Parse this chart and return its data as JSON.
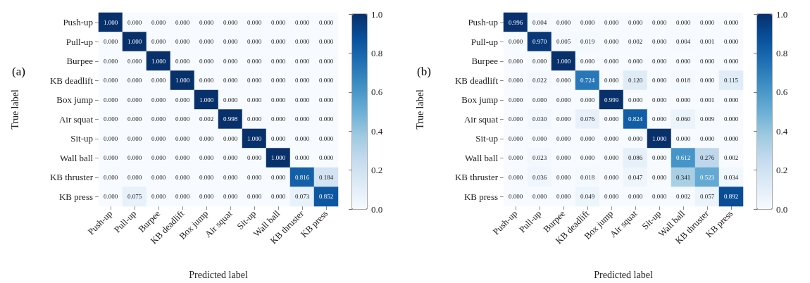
{
  "chart_data": [
    {
      "type": "heatmap",
      "title": "(a)",
      "xlabel": "Predicted label",
      "ylabel": "True label",
      "clim": [
        0,
        1
      ],
      "cticks": [
        {
          "value": 0,
          "label": "0.0"
        },
        {
          "value": 0.2,
          "label": "0.2"
        },
        {
          "value": 0.4,
          "label": "0.4"
        },
        {
          "value": 0.6,
          "label": "0.6"
        },
        {
          "value": 0.8,
          "label": "0.8"
        },
        {
          "value": 1,
          "label": "1.0"
        }
      ],
      "categories": [
        "Push-up",
        "Pull-up",
        "Burpee",
        "KB deadlift",
        "Box jump",
        "Air squat",
        "Sit-up",
        "Wall ball",
        "KB thruster",
        "KB press"
      ],
      "y_categories": [
        "Push-up",
        "Pull-up",
        "Burpee",
        "KB deadlift",
        "Box jump",
        "Air squat",
        "Sit-up",
        "Wall ball",
        "KB thruster",
        "KB press"
      ],
      "cells": [
        [
          1,
          0,
          0,
          0,
          0,
          0,
          0,
          0,
          0,
          0
        ],
        [
          0,
          1,
          0,
          0,
          0,
          0,
          0,
          0,
          0,
          0
        ],
        [
          0,
          0,
          1,
          0,
          0,
          0,
          0,
          0,
          0,
          0
        ],
        [
          0,
          0,
          0,
          1,
          0,
          0,
          0,
          0,
          0,
          0
        ],
        [
          0,
          0,
          0,
          0,
          1,
          0,
          0,
          0,
          0,
          0
        ],
        [
          0,
          0,
          0,
          0,
          0.002,
          0.998,
          0,
          0,
          0,
          0
        ],
        [
          0,
          0,
          0,
          0,
          0,
          0,
          1,
          0,
          0,
          0
        ],
        [
          0,
          0,
          0,
          0,
          0,
          0,
          0,
          1,
          0,
          0
        ],
        [
          0,
          0,
          0,
          0,
          0,
          0,
          0,
          0,
          0.816,
          0.184
        ],
        [
          0,
          0.075,
          0,
          0,
          0,
          0,
          0,
          0,
          0.073,
          0.852
        ]
      ],
      "cell_labels": [
        [
          "1.000",
          "0.000",
          "0.000",
          "0.000",
          "0.000",
          "0.000",
          "0.000",
          "0.000",
          "0.000",
          "0.000"
        ],
        [
          "0.000",
          "1.000",
          "0.000",
          "0.000",
          "0.000",
          "0.000",
          "0.000",
          "0.000",
          "0.000",
          "0.000"
        ],
        [
          "0.000",
          "0.000",
          "1.000",
          "0.000",
          "0.000",
          "0.000",
          "0.000",
          "0.000",
          "0.000",
          "0.000"
        ],
        [
          "0.000",
          "0.000",
          "0.000",
          "1.000",
          "0.000",
          "0.000",
          "0.000",
          "0.000",
          "0.000",
          "0.000"
        ],
        [
          "0.000",
          "0.000",
          "0.000",
          "0.000",
          "1.000",
          "0.000",
          "0.000",
          "0.000",
          "0.000",
          "0.000"
        ],
        [
          "0.000",
          "0.000",
          "0.000",
          "0.000",
          "0.002",
          "0.998",
          "0.000",
          "0.000",
          "0.000",
          "0.000"
        ],
        [
          "0.000",
          "0.000",
          "0.000",
          "0.000",
          "0.000",
          "0.000",
          "1.000",
          "0.000",
          "0.000",
          "0.000"
        ],
        [
          "0.000",
          "0.000",
          "0.000",
          "0.000",
          "0.000",
          "0.000",
          "0.000",
          "1.000",
          "0.000",
          "0.000"
        ],
        [
          "0.000",
          "0.000",
          "0.000",
          "0.000",
          "0.000",
          "0.000",
          "0.000",
          "0.000",
          "0.816",
          "0.184"
        ],
        [
          "0.000",
          "0.075",
          "0.000",
          "0.000",
          "0.000",
          "0.000",
          "0.000",
          "0.000",
          "0.073",
          "0.852"
        ]
      ]
    },
    {
      "type": "heatmap",
      "title": "(b)",
      "xlabel": "Predicted label",
      "ylabel": "True label",
      "clim": [
        0,
        1
      ],
      "cticks": [
        {
          "value": 0,
          "label": "0.0"
        },
        {
          "value": 0.2,
          "label": "0.2"
        },
        {
          "value": 0.4,
          "label": "0.4"
        },
        {
          "value": 0.6,
          "label": "0.6"
        },
        {
          "value": 0.8,
          "label": "0.8"
        },
        {
          "value": 1,
          "label": "1.0"
        }
      ],
      "categories": [
        "Push-up",
        "Pull-up",
        "Burpee",
        "KB deadlift",
        "Box jump",
        "Air squat",
        "Sit-up",
        "Wall ball",
        "KB thruster",
        "KB press"
      ],
      "y_categories": [
        "Push-up",
        "Pull-up",
        "Burpee",
        "KB deadlift",
        "Box jump",
        "Air squat",
        "Sit-up",
        "Wall ball",
        "KB thruster",
        "KB press"
      ],
      "cells": [
        [
          0.996,
          0.004,
          0,
          0,
          0,
          0,
          0,
          0,
          0,
          0
        ],
        [
          0,
          0.97,
          0.005,
          0.019,
          0,
          0.002,
          0,
          0.004,
          0.001,
          0
        ],
        [
          0,
          0,
          1,
          0,
          0,
          0,
          0,
          0,
          0,
          0
        ],
        [
          0,
          0.022,
          0,
          0.724,
          0,
          0.12,
          0,
          0.018,
          0,
          0.115
        ],
        [
          0,
          0,
          0,
          0,
          0.999,
          0,
          0,
          0,
          0.001,
          0
        ],
        [
          0,
          0.03,
          0,
          0.076,
          0,
          0.824,
          0,
          0.06,
          0.009,
          0
        ],
        [
          0,
          0,
          0,
          0,
          0,
          0,
          1,
          0,
          0,
          0
        ],
        [
          0,
          0.023,
          0,
          0,
          0,
          0.086,
          0,
          0.612,
          0.276,
          0.002
        ],
        [
          0,
          0.036,
          0,
          0.018,
          0,
          0.047,
          0,
          0.341,
          0.523,
          0.034
        ],
        [
          0,
          0,
          0,
          0.049,
          0,
          0,
          0,
          0.002,
          0.057,
          0.892
        ]
      ],
      "cell_labels": [
        [
          "0.996",
          "0.004",
          "0.000",
          "0.000",
          "0.000",
          "0.000",
          "0.000",
          "0.000",
          "0.000",
          "0.000"
        ],
        [
          "0.000",
          "0.970",
          "0.005",
          "0.019",
          "0.000",
          "0.002",
          "0.000",
          "0.004",
          "0.001",
          "0.000"
        ],
        [
          "0.000",
          "0.000",
          "1.000",
          "0.000",
          "0.000",
          "0.000",
          "0.000",
          "0.000",
          "0.000",
          "0.000"
        ],
        [
          "0.000",
          "0.022",
          "0.000",
          "0.724",
          "0.000",
          "0.120",
          "0.000",
          "0.018",
          "0.000",
          "0.115"
        ],
        [
          "0.000",
          "0.000",
          "0.000",
          "0.000",
          "0.999",
          "0.000",
          "0.000",
          "0.000",
          "0.001",
          "0.000"
        ],
        [
          "0.000",
          "0.030",
          "0.000",
          "0.076",
          "0.000",
          "0.824",
          "0.000",
          "0.060",
          "0.009",
          "0.000"
        ],
        [
          "0.000",
          "0.000",
          "0.000",
          "0.000",
          "0.000",
          "0.000",
          "1.000",
          "0.000",
          "0.000",
          "0.000"
        ],
        [
          "0.000",
          "0.023",
          "0.000",
          "0.000",
          "0.000",
          "0.086",
          "0.000",
          "0.612",
          "0.276",
          "0.002"
        ],
        [
          "0.000",
          "0.036",
          "0.000",
          "0.018",
          "0.000",
          "0.047",
          "0.000",
          "0.341",
          "0.523",
          "0.034"
        ],
        [
          "0.000",
          "0.000",
          "0.000",
          "0.049",
          "0.000",
          "0.000",
          "0.000",
          "0.002",
          "0.057",
          "0.892"
        ]
      ]
    }
  ]
}
